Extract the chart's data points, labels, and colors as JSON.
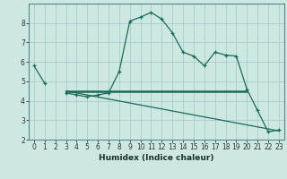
{
  "title": "",
  "xlabel": "Humidex (Indice chaleur)",
  "background_color": "#cce8e0",
  "line_color": "#1a6b5a",
  "grid_color": "#aacccc",
  "x_values": [
    0,
    1,
    2,
    3,
    4,
    5,
    6,
    7,
    8,
    9,
    10,
    11,
    12,
    13,
    14,
    15,
    16,
    17,
    18,
    19,
    20,
    21,
    22,
    23
  ],
  "curve1_y": [
    5.8,
    4.9,
    null,
    4.4,
    4.3,
    4.2,
    4.3,
    4.4,
    5.5,
    8.1,
    8.3,
    8.55,
    8.2,
    7.5,
    6.5,
    6.3,
    5.8,
    6.5,
    6.35,
    6.3,
    4.6,
    3.5,
    2.4,
    2.5
  ],
  "flat_line_y": 4.5,
  "flat_line_x_start": 3,
  "flat_line_x_end": 20,
  "diagonal_line_x": [
    3,
    23
  ],
  "diagonal_line_y": [
    4.5,
    2.45
  ],
  "ylim": [
    2,
    9
  ],
  "xlim": [
    -0.5,
    23.5
  ],
  "yticks": [
    2,
    3,
    4,
    5,
    6,
    7,
    8
  ],
  "xticks": [
    0,
    1,
    2,
    3,
    4,
    5,
    6,
    7,
    8,
    9,
    10,
    11,
    12,
    13,
    14,
    15,
    16,
    17,
    18,
    19,
    20,
    21,
    22,
    23
  ],
  "tick_fontsize": 5.5,
  "xlabel_fontsize": 6.5
}
